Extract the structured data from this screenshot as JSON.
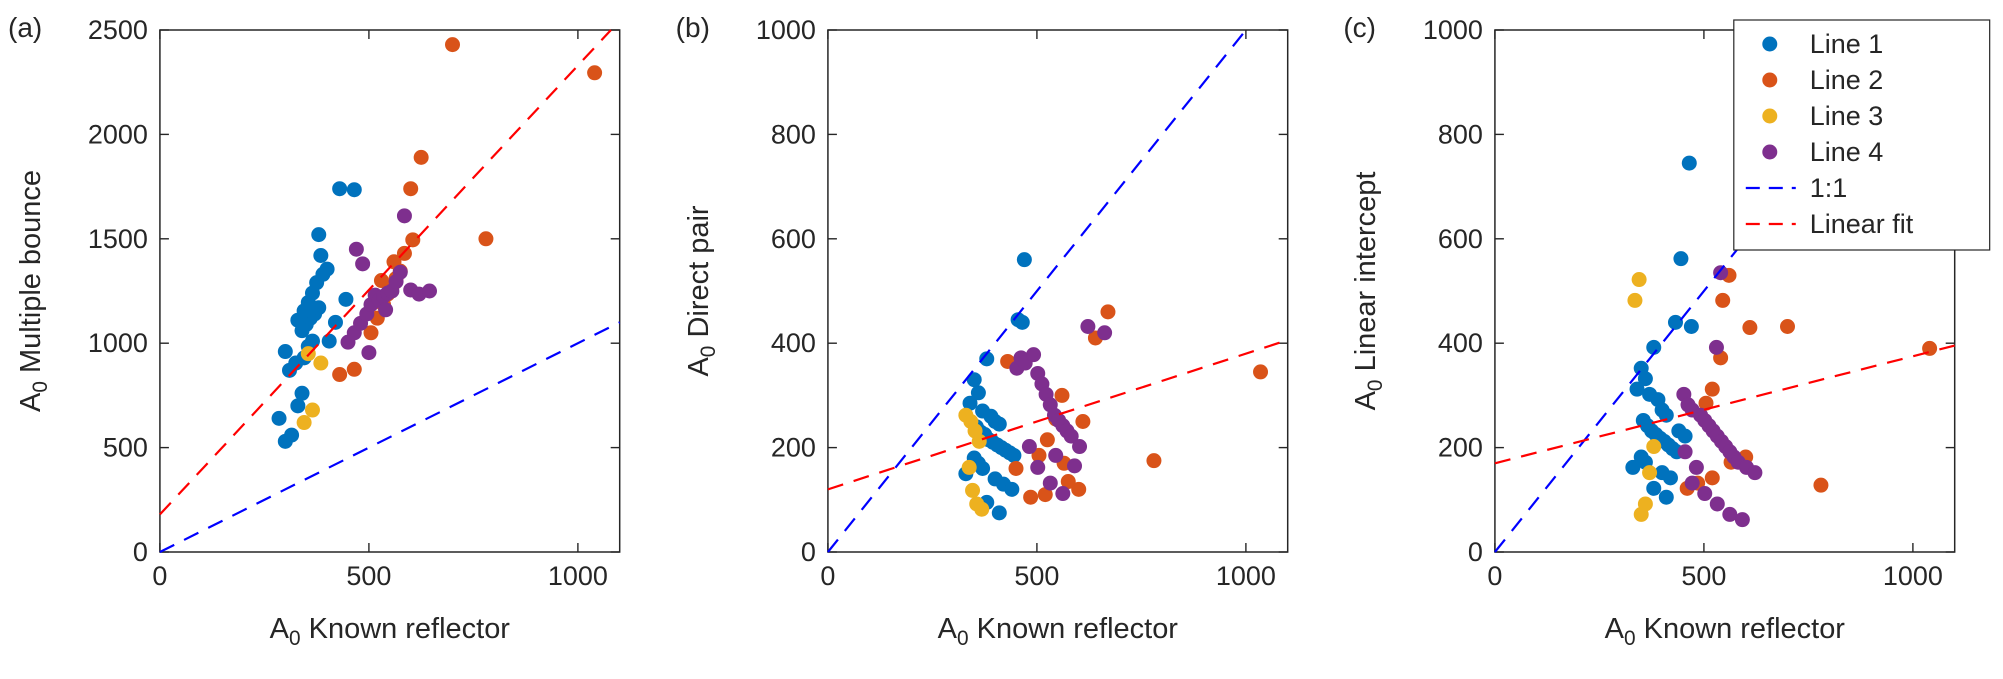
{
  "figure": {
    "background": "#ffffff",
    "axis_color": "#262626"
  },
  "legend": {
    "location": "top-right-of-panel-c",
    "entries": [
      {
        "label": "Line 1",
        "type": "marker",
        "color": "#0072BD"
      },
      {
        "label": "Line 2",
        "type": "marker",
        "color": "#D95319"
      },
      {
        "label": "Line 3",
        "type": "marker",
        "color": "#EDB120"
      },
      {
        "label": "Line 4",
        "type": "marker",
        "color": "#7E2F8E"
      },
      {
        "label": "1:1",
        "type": "dashed-line",
        "color": "#0000FF"
      },
      {
        "label": "Linear fit",
        "type": "dashed-line",
        "color": "#FF0000"
      }
    ]
  },
  "chart_data": [
    {
      "type": "scatter",
      "panel_label": "(a)",
      "xlabel": "A_0 Known reflector",
      "ylabel": "A_0 Multiple bounce",
      "xlim": [
        0,
        1100
      ],
      "ylim": [
        0,
        2500
      ],
      "xticks": [
        0,
        500,
        1000
      ],
      "yticks": [
        0,
        500,
        1000,
        1500,
        2000,
        2500
      ],
      "grid": false,
      "show_legend": false,
      "series": [
        {
          "name": "Line 1",
          "color": "#0072BD",
          "points": [
            [
              300,
              530
            ],
            [
              315,
              560
            ],
            [
              285,
              640
            ],
            [
              330,
              700
            ],
            [
              340,
              760
            ],
            [
              310,
              870
            ],
            [
              325,
              905
            ],
            [
              345,
              930
            ],
            [
              300,
              960
            ],
            [
              355,
              985
            ],
            [
              365,
              1010
            ],
            [
              340,
              1060
            ],
            [
              350,
              1090
            ],
            [
              330,
              1110
            ],
            [
              360,
              1120
            ],
            [
              370,
              1140
            ],
            [
              345,
              1155
            ],
            [
              380,
              1170
            ],
            [
              355,
              1195
            ],
            [
              365,
              1240
            ],
            [
              375,
              1290
            ],
            [
              390,
              1330
            ],
            [
              400,
              1355
            ],
            [
              385,
              1420
            ],
            [
              380,
              1520
            ],
            [
              430,
              1740
            ],
            [
              465,
              1735
            ],
            [
              420,
              1100
            ],
            [
              445,
              1210
            ],
            [
              405,
              1010
            ]
          ]
        },
        {
          "name": "Line 2",
          "color": "#D95319",
          "points": [
            [
              430,
              850
            ],
            [
              465,
              875
            ],
            [
              505,
              1050
            ],
            [
              520,
              1120
            ],
            [
              535,
              1185
            ],
            [
              545,
              1235
            ],
            [
              555,
              1270
            ],
            [
              565,
              1310
            ],
            [
              575,
              1345
            ],
            [
              560,
              1390
            ],
            [
              585,
              1430
            ],
            [
              605,
              1495
            ],
            [
              600,
              1740
            ],
            [
              625,
              1890
            ],
            [
              700,
              2430
            ],
            [
              1040,
              2295
            ],
            [
              780,
              1500
            ],
            [
              530,
              1300
            ]
          ]
        },
        {
          "name": "Line 3",
          "color": "#EDB120",
          "points": [
            [
              345,
              620
            ],
            [
              365,
              680
            ],
            [
              385,
              905
            ],
            [
              355,
              950
            ]
          ]
        },
        {
          "name": "Line 4",
          "color": "#7E2F8E",
          "points": [
            [
              450,
              1005
            ],
            [
              465,
              1050
            ],
            [
              480,
              1095
            ],
            [
              495,
              1140
            ],
            [
              505,
              1185
            ],
            [
              515,
              1230
            ],
            [
              525,
              1205
            ],
            [
              535,
              1225
            ],
            [
              545,
              1240
            ],
            [
              555,
              1250
            ],
            [
              565,
              1295
            ],
            [
              575,
              1340
            ],
            [
              585,
              1610
            ],
            [
              600,
              1255
            ],
            [
              620,
              1235
            ],
            [
              645,
              1250
            ],
            [
              500,
              955
            ],
            [
              485,
              1380
            ],
            [
              470,
              1450
            ],
            [
              540,
              1160
            ]
          ]
        }
      ],
      "ref_lines": [
        {
          "name": "1:1",
          "color": "#0000FF",
          "style": "dashed",
          "slope": 1,
          "intercept": 0
        },
        {
          "name": "Linear fit",
          "color": "#FF0000",
          "style": "dashed",
          "slope": 2.15,
          "intercept": 180
        }
      ]
    },
    {
      "type": "scatter",
      "panel_label": "(b)",
      "xlabel": "A_0 Known reflector",
      "ylabel": "A_0 Direct pair",
      "xlim": [
        0,
        1100
      ],
      "ylim": [
        0,
        1000
      ],
      "xticks": [
        0,
        500,
        1000
      ],
      "yticks": [
        0,
        200,
        400,
        600,
        800,
        1000
      ],
      "grid": false,
      "show_legend": false,
      "series": [
        {
          "name": "Line 1",
          "color": "#0072BD",
          "points": [
            [
              470,
              560
            ],
            [
              455,
              445
            ],
            [
              465,
              440
            ],
            [
              380,
              370
            ],
            [
              350,
              330
            ],
            [
              360,
              305
            ],
            [
              340,
              285
            ],
            [
              370,
              270
            ],
            [
              390,
              260
            ],
            [
              400,
              250
            ],
            [
              410,
              245
            ],
            [
              355,
              240
            ],
            [
              365,
              230
            ],
            [
              375,
              225
            ],
            [
              385,
              215
            ],
            [
              395,
              210
            ],
            [
              405,
              205
            ],
            [
              415,
              200
            ],
            [
              425,
              195
            ],
            [
              435,
              190
            ],
            [
              445,
              185
            ],
            [
              350,
              180
            ],
            [
              360,
              170
            ],
            [
              370,
              160
            ],
            [
              330,
              150
            ],
            [
              400,
              140
            ],
            [
              420,
              130
            ],
            [
              380,
              95
            ],
            [
              410,
              75
            ],
            [
              440,
              120
            ]
          ]
        },
        {
          "name": "Line 2",
          "color": "#D95319",
          "points": [
            [
              1035,
              345
            ],
            [
              780,
              175
            ],
            [
              670,
              460
            ],
            [
              640,
              410
            ],
            [
              560,
              300
            ],
            [
              545,
              255
            ],
            [
              525,
              215
            ],
            [
              505,
              185
            ],
            [
              565,
              170
            ],
            [
              600,
              120
            ],
            [
              520,
              110
            ],
            [
              485,
              105
            ],
            [
              430,
              365
            ],
            [
              610,
              250
            ],
            [
              575,
              135
            ],
            [
              450,
              160
            ]
          ]
        },
        {
          "name": "Line 3",
          "color": "#EDB120",
          "points": [
            [
              330,
              262
            ],
            [
              342,
              250
            ],
            [
              352,
              232
            ],
            [
              362,
              212
            ],
            [
              338,
              162
            ],
            [
              356,
              92
            ],
            [
              368,
              82
            ],
            [
              346,
              118
            ]
          ]
        },
        {
          "name": "Line 4",
          "color": "#7E2F8E",
          "points": [
            [
              452,
              352
            ],
            [
              462,
              372
            ],
            [
              472,
              362
            ],
            [
              492,
              378
            ],
            [
              502,
              342
            ],
            [
              512,
              322
            ],
            [
              522,
              302
            ],
            [
              532,
              282
            ],
            [
              542,
              262
            ],
            [
              552,
              252
            ],
            [
              562,
              242
            ],
            [
              572,
              232
            ],
            [
              582,
              222
            ],
            [
              602,
              202
            ],
            [
              622,
              432
            ],
            [
              662,
              420
            ],
            [
              532,
              132
            ],
            [
              562,
              112
            ],
            [
              502,
              162
            ],
            [
              482,
              202
            ],
            [
              545,
              185
            ],
            [
              590,
              165
            ]
          ]
        }
      ],
      "ref_lines": [
        {
          "name": "1:1",
          "color": "#0000FF",
          "style": "dashed",
          "slope": 1,
          "intercept": 0
        },
        {
          "name": "Linear fit",
          "color": "#FF0000",
          "style": "dashed",
          "slope": 0.26,
          "intercept": 120
        }
      ]
    },
    {
      "type": "scatter",
      "panel_label": "(c)",
      "xlabel": "A_0 Known reflector",
      "ylabel": "A_0 Linear intercept",
      "xlim": [
        0,
        1100
      ],
      "ylim": [
        0,
        1000
      ],
      "xticks": [
        0,
        500,
        1000
      ],
      "yticks": [
        0,
        200,
        400,
        600,
        800,
        1000
      ],
      "grid": false,
      "show_legend": true,
      "series": [
        {
          "name": "Line 1",
          "color": "#0072BD",
          "points": [
            [
              465,
              745
            ],
            [
              445,
              562
            ],
            [
              432,
              440
            ],
            [
              470,
              432
            ],
            [
              380,
              392
            ],
            [
              350,
              352
            ],
            [
              360,
              332
            ],
            [
              340,
              312
            ],
            [
              370,
              302
            ],
            [
              390,
              292
            ],
            [
              400,
              272
            ],
            [
              410,
              262
            ],
            [
              355,
              252
            ],
            [
              365,
              242
            ],
            [
              375,
              232
            ],
            [
              385,
              225
            ],
            [
              395,
              218
            ],
            [
              405,
              212
            ],
            [
              415,
              205
            ],
            [
              425,
              198
            ],
            [
              435,
              192
            ],
            [
              350,
              182
            ],
            [
              360,
              172
            ],
            [
              330,
              162
            ],
            [
              400,
              152
            ],
            [
              420,
              142
            ],
            [
              380,
              122
            ],
            [
              410,
              105
            ],
            [
              440,
              232
            ],
            [
              455,
              222
            ]
          ]
        },
        {
          "name": "Line 2",
          "color": "#D95319",
          "points": [
            [
              1040,
              390
            ],
            [
              780,
              128
            ],
            [
              700,
              432
            ],
            [
              560,
              530
            ],
            [
              545,
              482
            ],
            [
              520,
              312
            ],
            [
              505,
              285
            ],
            [
              565,
              172
            ],
            [
              600,
              182
            ],
            [
              520,
              142
            ],
            [
              485,
              132
            ],
            [
              460,
              122
            ],
            [
              610,
              430
            ],
            [
              540,
              372
            ]
          ]
        },
        {
          "name": "Line 3",
          "color": "#EDB120",
          "points": [
            [
              345,
              522
            ],
            [
              335,
              482
            ],
            [
              360,
              92
            ],
            [
              350,
              72
            ],
            [
              380,
              202
            ],
            [
              370,
              152
            ]
          ]
        },
        {
          "name": "Line 4",
          "color": "#7E2F8E",
          "points": [
            [
              540,
              535
            ],
            [
              530,
              392
            ],
            [
              452,
              302
            ],
            [
              462,
              282
            ],
            [
              472,
              272
            ],
            [
              492,
              262
            ],
            [
              502,
              252
            ],
            [
              512,
              242
            ],
            [
              522,
              232
            ],
            [
              532,
              222
            ],
            [
              542,
              212
            ],
            [
              552,
              202
            ],
            [
              562,
              192
            ],
            [
              572,
              182
            ],
            [
              582,
              172
            ],
            [
              602,
              162
            ],
            [
              622,
              152
            ],
            [
              472,
              132
            ],
            [
              502,
              112
            ],
            [
              532,
              92
            ],
            [
              562,
              72
            ],
            [
              592,
              62
            ],
            [
              482,
              162
            ],
            [
              455,
              192
            ]
          ]
        }
      ],
      "ref_lines": [
        {
          "name": "1:1",
          "color": "#0000FF",
          "style": "dashed",
          "slope": 1,
          "intercept": 0
        },
        {
          "name": "Linear fit",
          "color": "#FF0000",
          "style": "dashed",
          "slope": 0.205,
          "intercept": 170
        }
      ]
    }
  ]
}
